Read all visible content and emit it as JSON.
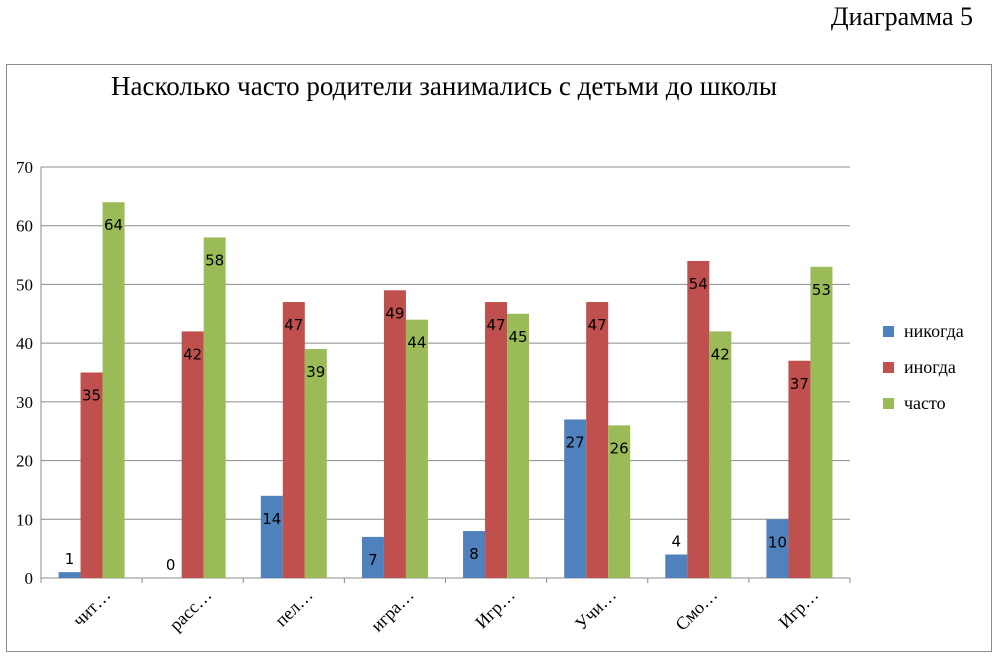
{
  "caption": "Диаграмма 5",
  "chart_data": {
    "type": "bar",
    "title": "Насколько часто родители занимались с детьми до школы",
    "categories": [
      "чит…",
      "расс…",
      "пел…",
      "игра…",
      "Игр…",
      "Учи…",
      "Смо…",
      "Игр…"
    ],
    "series": [
      {
        "name": "никогда",
        "color": "#4f81bd",
        "values": [
          1,
          0,
          14,
          7,
          8,
          27,
          4,
          10
        ]
      },
      {
        "name": "иногда",
        "color": "#c0504d",
        "values": [
          35,
          42,
          47,
          49,
          47,
          47,
          54,
          37
        ]
      },
      {
        "name": "часто",
        "color": "#9bbb59",
        "values": [
          64,
          58,
          39,
          44,
          45,
          26,
          42,
          53
        ]
      }
    ],
    "ylim": [
      0,
      70
    ],
    "yticks": [
      0,
      10,
      20,
      30,
      40,
      50,
      60,
      70
    ],
    "grid": true,
    "legend_position": "right"
  }
}
